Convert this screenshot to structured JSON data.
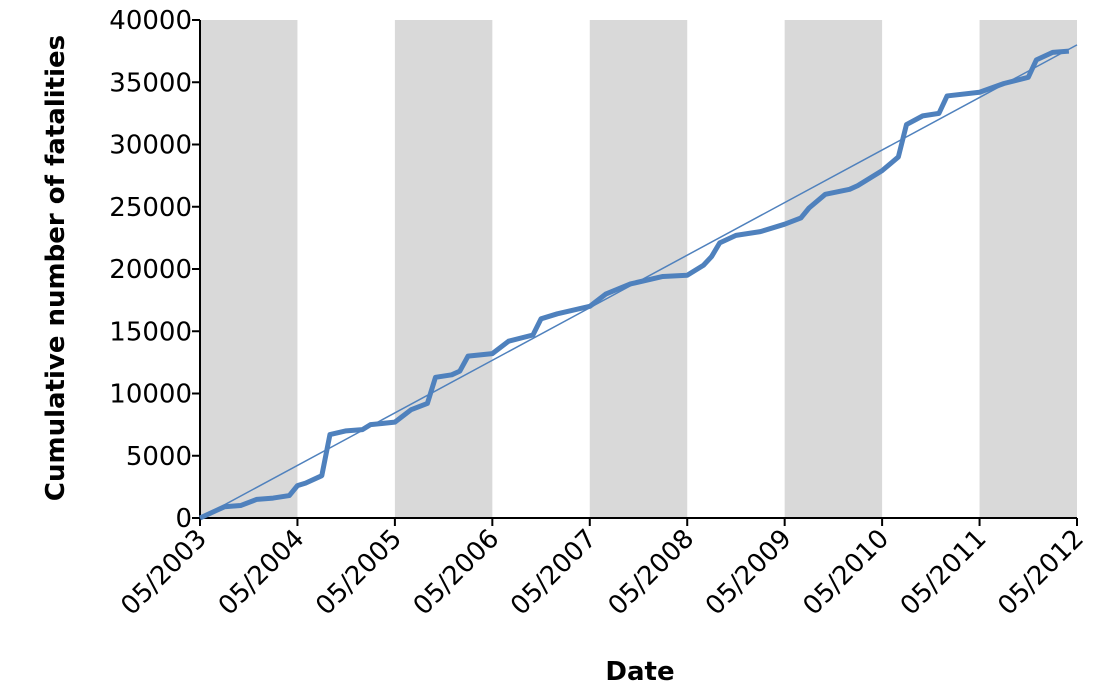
{
  "chart_data": {
    "type": "line",
    "xlabel": "Date",
    "ylabel": "Cumulative number of fatalities",
    "x": [
      "05/2003",
      "07/2003",
      "08/2003",
      "10/2003",
      "12/2003",
      "02/2004",
      "04/2004",
      "05/2004",
      "06/2004",
      "08/2004",
      "09/2004",
      "11/2004",
      "01/2005",
      "02/2005",
      "05/2005",
      "07/2005",
      "09/2005",
      "10/2005",
      "12/2005",
      "01/2006",
      "02/2006",
      "05/2006",
      "07/2006",
      "10/2006",
      "11/2006",
      "01/2007",
      "05/2007",
      "07/2007",
      "10/2007",
      "02/2008",
      "05/2008",
      "07/2008",
      "08/2008",
      "09/2008",
      "11/2008",
      "02/2009",
      "05/2009",
      "07/2009",
      "08/2009",
      "10/2009",
      "01/2010",
      "02/2010",
      "05/2010",
      "07/2010",
      "08/2010",
      "10/2010",
      "12/2010",
      "01/2011",
      "05/2011",
      "08/2011",
      "11/2011",
      "12/2011",
      "02/2012",
      "04/2012"
    ],
    "series": [
      {
        "color": "#4f81bd",
        "values": [
          0,
          600,
          900,
          1000,
          1500,
          1600,
          1800,
          2600,
          2800,
          3400,
          6700,
          7000,
          7100,
          7500,
          7700,
          8700,
          9200,
          11300,
          11500,
          11800,
          13000,
          13200,
          14200,
          14700,
          16000,
          16400,
          17000,
          18000,
          18800,
          19400,
          19500,
          20300,
          21000,
          22100,
          22700,
          23000,
          23600,
          24100,
          24900,
          26000,
          26400,
          26700,
          27900,
          29000,
          31600,
          32300,
          32500,
          33900,
          34200,
          34900,
          35400,
          36800,
          37400,
          37500
        ]
      }
    ],
    "trendline": {
      "color": "#4f81bd",
      "x": [
        "05/2003",
        "05/2012"
      ],
      "values": [
        0,
        38000
      ]
    },
    "shaded_periods": {
      "color": "#d9d9d9",
      "ranges": [
        [
          "05/2003",
          "05/2004"
        ],
        [
          "05/2005",
          "05/2006"
        ],
        [
          "05/2007",
          "05/2008"
        ],
        [
          "05/2009",
          "05/2010"
        ],
        [
          "05/2011",
          "05/2012"
        ]
      ]
    },
    "xlim": [
      "05/2003",
      "05/2012"
    ],
    "xticks": [
      "05/2003",
      "05/2004",
      "05/2005",
      "05/2006",
      "05/2007",
      "05/2008",
      "05/2009",
      "05/2010",
      "05/2011",
      "05/2012"
    ],
    "ylim": [
      0,
      40000
    ],
    "yticks": [
      0,
      5000,
      10000,
      15000,
      20000,
      25000,
      30000,
      35000,
      40000
    ]
  }
}
